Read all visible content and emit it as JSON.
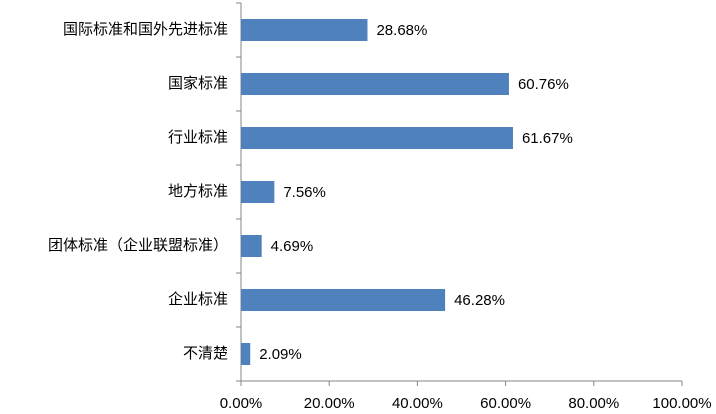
{
  "chart_data": {
    "type": "hbar",
    "categories": [
      "国际标准和国外先进标准",
      "国家标准",
      "行业标准",
      "地方标准",
      "团体标准（企业联盟标准）",
      "企业标准",
      "不清楚"
    ],
    "values": [
      28.68,
      60.76,
      61.67,
      7.56,
      4.69,
      46.28,
      2.09
    ],
    "value_labels": [
      "28.68%",
      "60.76%",
      "61.67%",
      "7.56%",
      "4.69%",
      "46.28%",
      "2.09%"
    ],
    "color": "#4f81bd",
    "xlim": [
      0,
      100
    ],
    "xticks": [
      {
        "value": 0,
        "label": "0.00%"
      },
      {
        "value": 20,
        "label": "20.00%"
      },
      {
        "value": 40,
        "label": "40.00%"
      },
      {
        "value": 60,
        "label": "60.00%"
      },
      {
        "value": 80,
        "label": "80.00%"
      },
      {
        "value": 100,
        "label": "100.00%"
      }
    ],
    "grid": false
  }
}
